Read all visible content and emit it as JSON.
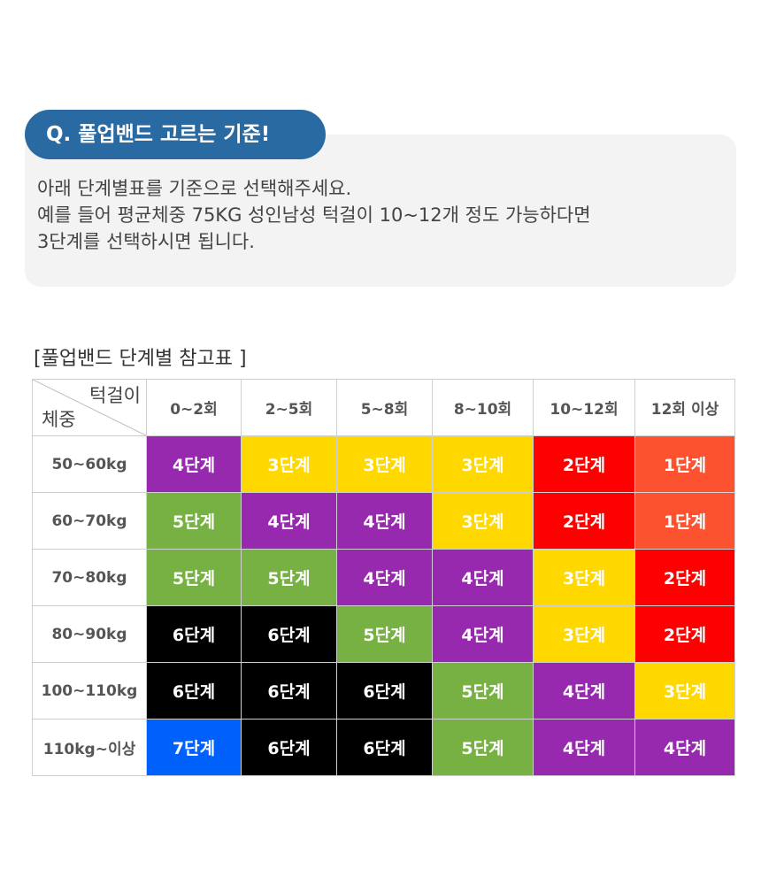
{
  "qa": {
    "title": "Q. 풀업밴드 고르는 기준!",
    "lines": [
      "아래 단계별표를 기준으로 선택해주세요.",
      "예를 들어 평균체중 75KG 성인남성 턱걸이 10~12개 정도 가능하다면",
      "3단계를 선택하시면 됩니다."
    ]
  },
  "table": {
    "title": "[풀업밴드 단계별 참고표 ]",
    "corner_top": "턱걸이",
    "corner_bottom": "체중",
    "columns": [
      "0~2회",
      "2~5회",
      "5~8회",
      "8~10회",
      "10~12회",
      "12회 이상"
    ],
    "rows": [
      {
        "label": "50~60kg",
        "cells": [
          "4단계",
          "3단계",
          "3단계",
          "3단계",
          "2단계",
          "1단계"
        ]
      },
      {
        "label": "60~70kg",
        "cells": [
          "5단계",
          "4단계",
          "4단계",
          "3단계",
          "2단계",
          "1단계"
        ]
      },
      {
        "label": "70~80kg",
        "cells": [
          "5단계",
          "5단계",
          "4단계",
          "4단계",
          "3단계",
          "2단계"
        ]
      },
      {
        "label": "80~90kg",
        "cells": [
          "6단계",
          "6단계",
          "5단계",
          "4단계",
          "3단계",
          "2단계"
        ]
      },
      {
        "label": "100~110kg",
        "cells": [
          "6단계",
          "6단계",
          "6단계",
          "5단계",
          "4단계",
          "3단계"
        ]
      },
      {
        "label": "110kg~이상",
        "cells": [
          "7단계",
          "6단계",
          "6단계",
          "5단계",
          "4단계",
          "4단계"
        ]
      }
    ],
    "level_colors": {
      "1단계": "#fc5230",
      "2단계": "#fd0000",
      "3단계": "#ffd800",
      "4단계": "#9629ae",
      "5단계": "#77b043",
      "6단계": "#000000",
      "7단계": "#0060fc"
    }
  }
}
